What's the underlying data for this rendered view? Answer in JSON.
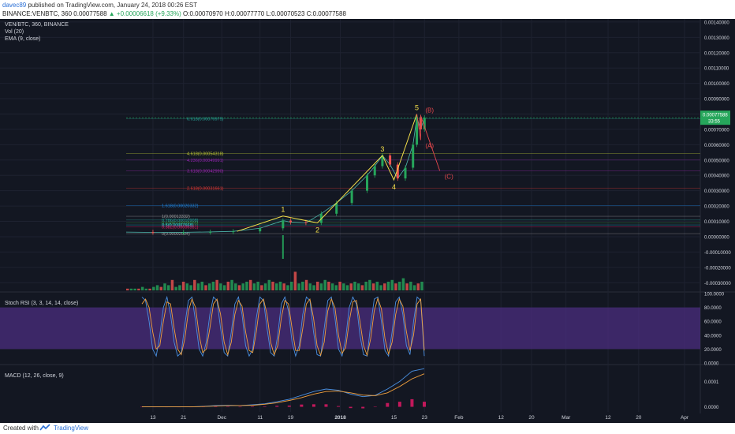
{
  "header": {
    "user": "davec89",
    "published": "published on TradingView.com, January 24, 2018 00:26 EST",
    "pair": "BINANCE:VENBTC, 360",
    "last": "0.00077588",
    "change": "+0.00006618 (+9.33%)",
    "open_label": "O:",
    "open": "0.00070970",
    "high_label": "H:",
    "high": "0.00077770",
    "low_label": "L:",
    "low": "0.00070523",
    "close_label": "C:",
    "close": "0.00077588"
  },
  "indicators": {
    "symbol_line": "VEN/BTC, 360, BINANCE",
    "vol": "Vol (20)",
    "ema": "EMA (9, close)",
    "stoch": "Stoch RSI (3, 3, 14, 14, close)",
    "macd": "MACD (12, 26, close, 9)"
  },
  "footer": {
    "created": "Created with",
    "brand": "TradingView"
  },
  "price_badge": {
    "value": "0.00077588",
    "countdown": "33:55"
  },
  "colors": {
    "background": "#131722",
    "up": "#26a65b",
    "down": "#ef5350",
    "wave": "#f5e04a",
    "abc": "#e5484d",
    "stoch_band": "#4b2d7f",
    "stoch_k": "#4a90e2",
    "stoch_d": "#f2a03d",
    "macd_line": "#4a90e2",
    "signal_line": "#f2a03d",
    "hist": "#c2185b"
  },
  "chart_data": [
    {
      "type": "line",
      "title": "VEN/BTC, 360, BINANCE",
      "x_ticks": [
        "13",
        "21",
        "Dec",
        "11",
        "19",
        "2018",
        "15",
        "23",
        "Feb",
        "12",
        "20",
        "Mar",
        "12",
        "20",
        "Apr"
      ],
      "y_ticks": [
        "0.00140000",
        "0.00130000",
        "0.00120000",
        "0.00110000",
        "0.00100000",
        "0.00090000",
        "0.00080000",
        "0.00070000",
        "0.00060000",
        "0.00050000",
        "0.00040000",
        "0.00030000",
        "0.00020000",
        "0.00010000",
        "0.00000000",
        "-0.00010000",
        "-0.00020000",
        "-0.00030000"
      ],
      "ylim": [
        -0.00035,
        0.00142
      ],
      "series": [
        {
          "name": "",
          "x": [
            "Nov 6",
            "Nov 13",
            "Nov 21",
            "Nov 28",
            "Dec 4",
            "Dec 11",
            "Dec 17",
            "Dec 19",
            "Dec 23",
            "Dec 27",
            "Dec 31",
            "Jan 4",
            "Jan 8",
            "Jan 10",
            "Jan 12",
            "Jan 14",
            "Jan 16",
            "Jan 18",
            "Jan 20",
            "Jan 21",
            "Jan 22",
            "Jan 23"
          ],
          "values": [
            3e-05,
            2.8e-05,
            2.9e-05,
            3.1e-05,
            3.5e-05,
            5.5e-05,
            0.000105,
            9.5e-05,
            9e-05,
            0.00015,
            0.00022,
            0.0003,
            0.0004,
            0.00046,
            0.00053,
            0.00047,
            0.00038,
            0.00045,
            0.0006,
            0.00078,
            0.0007,
            0.00077588
          ]
        }
      ],
      "wave_labels": [
        "1",
        "2",
        "3",
        "4",
        "5"
      ],
      "wave_points": [
        {
          "label": "1",
          "x": "Dec 17",
          "y": 0.000135
        },
        {
          "label": "2",
          "x": "Dec 26",
          "y": 9e-05
        },
        {
          "label": "3",
          "x": "Jan 12",
          "y": 0.00053
        },
        {
          "label": "4",
          "x": "Jan 15",
          "y": 0.00037
        },
        {
          "label": "5",
          "x": "Jan 21",
          "y": 0.0008
        }
      ],
      "correction_labels": [
        "(A)",
        "(B)",
        "(C)"
      ],
      "correction_points": [
        {
          "label": "(A)",
          "x": "Jan 22",
          "y": 0.00063
        },
        {
          "label": "(B)",
          "x": "Jan 22",
          "y": 0.00079
        },
        {
          "label": "(C)",
          "x": "Jan 27",
          "y": 0.00043
        }
      ],
      "fib_levels": [
        {
          "label": "6.618(0.00076975)",
          "value": 0.00076975,
          "color": "#26a69a"
        },
        {
          "label": "4.618(0.00054318)",
          "value": 0.00054318,
          "color": "#c0ca33"
        },
        {
          "label": "4.236(0.00049991)",
          "value": 0.00049991,
          "color": "#8e24aa"
        },
        {
          "label": "3.618(0.00042990)",
          "value": 0.0004299,
          "color": "#9c27b0"
        },
        {
          "label": "2.618(0.00031661)",
          "value": 0.00031661,
          "color": "#e53935"
        },
        {
          "label": "1.618(0.00020332)",
          "value": 0.00020332,
          "color": "#1e88e5"
        },
        {
          "label": "1(0.00013332)",
          "value": 0.00013332,
          "color": "#9e9e9e"
        },
        {
          "label": "0.786(0.00010908)",
          "value": 0.00010908,
          "color": "#26a69a"
        },
        {
          "label": "0.618(0.00009005)",
          "value": 9.005e-05,
          "color": "#43a047"
        },
        {
          "label": "0.5(0.00007668)",
          "value": 7.668e-05,
          "color": "#26c6da"
        },
        {
          "label": "0.382(0.00006331)",
          "value": 6.331e-05,
          "color": "#e91e63"
        },
        {
          "label": "0(0.00002004)",
          "value": 2.004e-05,
          "color": "#9e9e9e"
        }
      ],
      "volume_values": [
        1,
        1,
        1,
        1,
        2,
        1,
        1,
        2,
        3,
        2,
        4,
        3,
        6,
        2,
        3,
        5,
        4,
        3,
        6,
        4,
        5,
        3,
        4,
        5,
        6,
        4,
        3,
        5,
        6,
        4,
        3,
        4,
        5,
        6,
        4,
        5,
        3,
        4,
        6,
        5,
        4,
        5,
        4,
        3,
        5,
        8,
        4,
        5,
        6,
        4,
        3,
        5,
        4,
        6,
        5,
        4,
        3,
        5,
        4,
        3,
        4,
        5,
        4,
        3,
        5,
        6,
        4,
        5,
        3,
        4,
        5,
        6,
        4,
        5,
        7,
        4,
        5,
        3,
        4,
        5
      ],
      "grid": true
    },
    {
      "type": "line",
      "title": "Stoch RSI (3, 3, 14, 14, close)",
      "y_ticks": [
        "100.0000",
        "80.0000",
        "60.0000",
        "40.0000",
        "20.0000",
        "0.0000"
      ],
      "ylim": [
        0,
        100
      ],
      "band": [
        20,
        80
      ],
      "series": [
        {
          "name": "",
          "values": [
            95,
            90,
            60,
            20,
            10,
            40,
            80,
            95,
            70,
            30,
            10,
            15,
            55,
            90,
            95,
            60,
            20,
            10,
            30,
            70,
            95,
            90,
            50,
            15,
            10,
            45,
            85,
            95,
            70,
            25,
            10,
            20,
            65,
            95,
            90,
            50,
            15,
            10,
            40,
            85,
            95,
            75,
            30,
            10,
            25,
            70,
            95,
            90,
            45,
            12,
            10,
            50,
            90,
            95,
            65,
            20,
            10,
            35,
            80,
            95,
            85,
            40,
            12,
            10,
            55,
            92,
            95,
            60,
            18,
            10,
            45,
            88,
            95,
            70,
            25,
            12,
            60,
            95,
            90,
            10
          ]
        },
        {
          "name": "",
          "values": [
            85,
            92,
            80,
            45,
            20,
            25,
            60,
            88,
            85,
            50,
            20,
            12,
            35,
            75,
            92,
            80,
            40,
            15,
            20,
            50,
            85,
            92,
            70,
            30,
            12,
            30,
            70,
            90,
            82,
            45,
            18,
            15,
            45,
            85,
            92,
            70,
            30,
            12,
            25,
            65,
            90,
            85,
            50,
            18,
            18,
            50,
            85,
            92,
            65,
            25,
            11,
            30,
            75,
            92,
            80,
            40,
            14,
            22,
            60,
            88,
            90,
            60,
            25,
            11,
            35,
            75,
            93,
            78,
            35,
            13,
            30,
            70,
            92,
            82,
            45,
            18,
            40,
            85,
            92,
            18
          ]
        }
      ],
      "grid": true
    },
    {
      "type": "line",
      "title": "MACD (12, 26, close, 9)",
      "y_ticks": [
        "0.0001",
        "0.0000"
      ],
      "ylim": [
        -2e-05,
        0.00016
      ],
      "series": [
        {
          "name": "",
          "values": [
            0,
            0,
            0,
            0,
            0,
            2e-06,
            5e-06,
            6e-06,
            5e-06,
            8e-06,
            1.2e-05,
            2e-05,
            3e-05,
            4.5e-05,
            6e-05,
            7e-05,
            6.5e-05,
            5e-05,
            4e-05,
            4.5e-05,
            7e-05,
            0.0001,
            0.00014,
            0.00015
          ]
        },
        {
          "name": "",
          "values": [
            0,
            0,
            0,
            0,
            0,
            1e-06,
            3e-06,
            5e-06,
            5e-06,
            6e-06,
            1e-05,
            1.6e-05,
            2.5e-05,
            3.6e-05,
            5e-05,
            6e-05,
            6.2e-05,
            5.5e-05,
            4.6e-05,
            4.4e-05,
            5.5e-05,
            8e-05,
            0.00011,
            0.00013
          ]
        }
      ],
      "histogram": [
        0,
        0,
        0,
        0,
        0,
        1e-06,
        2e-06,
        1e-06,
        0,
        2e-06,
        2e-06,
        4e-06,
        5e-06,
        9e-06,
        1e-05,
        1e-05,
        3e-06,
        -5e-06,
        -6e-06,
        1e-06,
        1.5e-05,
        2e-05,
        3e-05,
        2e-05
      ],
      "grid": true
    }
  ]
}
